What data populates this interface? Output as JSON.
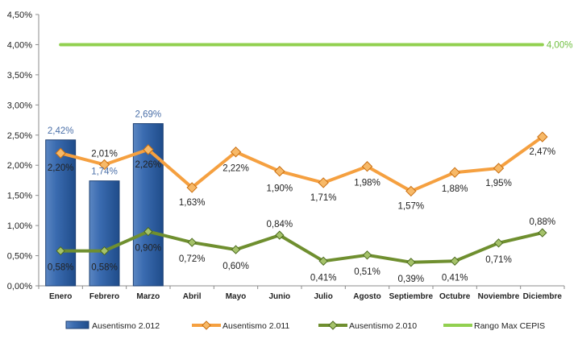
{
  "chart_data": {
    "type": "bar+line",
    "categories": [
      "Enero",
      "Febrero",
      "Marzo",
      "Abril",
      "Mayo",
      "Junio",
      "Julio",
      "Agosto",
      "Septiembre",
      "Octubre",
      "Noviembre",
      "Diciembre"
    ],
    "ylim": [
      0,
      4.5
    ],
    "yticks": [
      "0,00%",
      "0,50%",
      "1,00%",
      "1,50%",
      "2,00%",
      "2,50%",
      "3,00%",
      "3,50%",
      "4,00%",
      "4,50%"
    ],
    "grid": false,
    "legend_position": "bottom",
    "series": [
      {
        "name": "Ausentismo 2.012",
        "type": "bar",
        "color": "#2f5f9e",
        "values": [
          2.42,
          1.74,
          2.69,
          null,
          null,
          null,
          null,
          null,
          null,
          null,
          null,
          null
        ],
        "labels": [
          "2,42%",
          "1,74%",
          "2,69%"
        ]
      },
      {
        "name": "Ausentismo 2.011",
        "type": "line",
        "color": "#f5a040",
        "values": [
          2.2,
          2.01,
          2.26,
          1.63,
          2.22,
          1.9,
          1.71,
          1.98,
          1.57,
          1.88,
          1.95,
          2.47
        ],
        "labels": [
          "2,20%",
          "2,01%",
          "2,26%",
          "1,63%",
          "2,22%",
          "1,90%",
          "1,71%",
          "1,98%",
          "1,57%",
          "1,88%",
          "1,95%",
          "2,47%"
        ]
      },
      {
        "name": "Ausentismo 2.010",
        "type": "line",
        "color": "#6f8f2f",
        "values": [
          0.58,
          0.58,
          0.9,
          0.72,
          0.6,
          0.84,
          0.41,
          0.51,
          0.39,
          0.41,
          0.71,
          0.88
        ],
        "labels": [
          "0,58%",
          "0,58%",
          "0,90%",
          "0,72%",
          "0,60%",
          "0,84%",
          "0,41%",
          "0,51%",
          "0,39%",
          "0,41%",
          "0,71%",
          "0,88%"
        ]
      },
      {
        "name": "Rango Max CEPIS",
        "type": "line",
        "color": "#92d050",
        "values": [
          4.0,
          4.0,
          4.0,
          4.0,
          4.0,
          4.0,
          4.0,
          4.0,
          4.0,
          4.0,
          4.0,
          4.0
        ],
        "end_label": "4,00%"
      }
    ]
  }
}
